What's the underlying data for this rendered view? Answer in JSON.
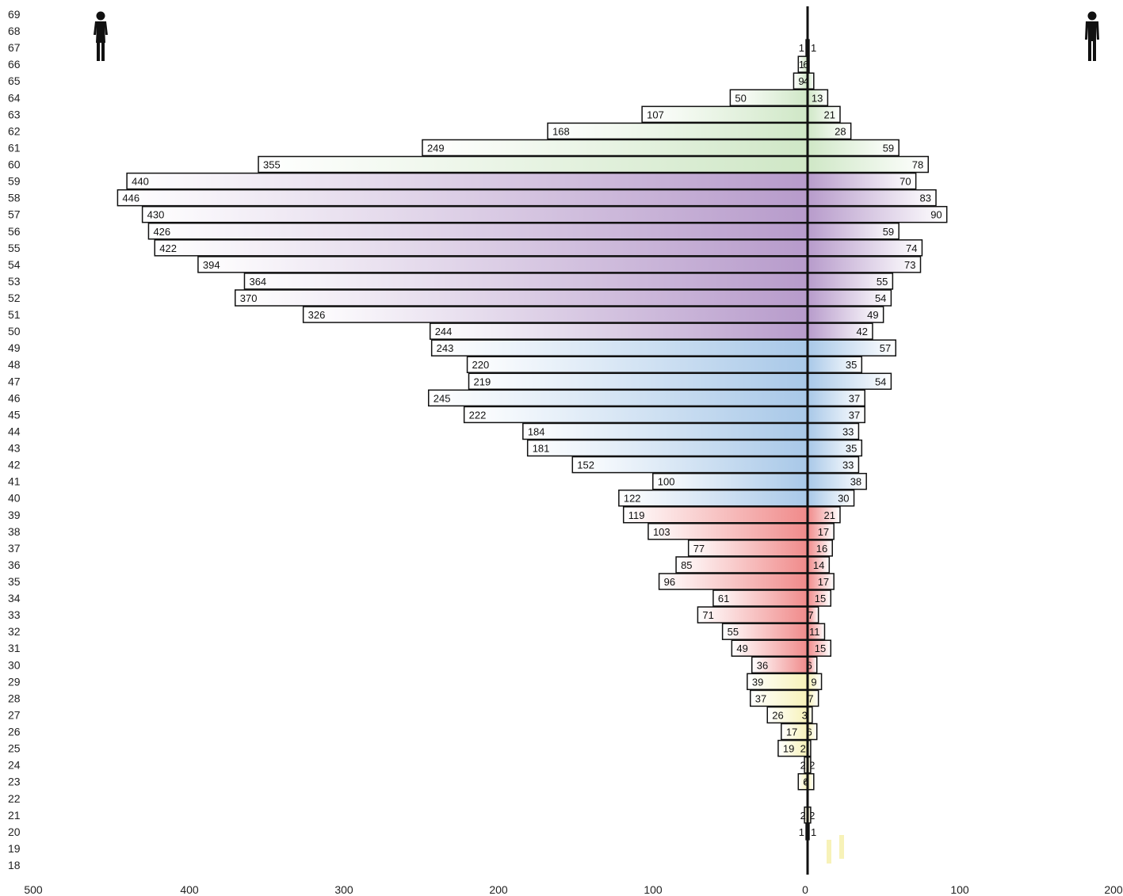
{
  "icons": {
    "left": "female-icon",
    "right": "male-icon"
  },
  "colors": {
    "green": "#cfe7c6",
    "purple": "#b79bcb",
    "blue": "#a8c8e8",
    "red": "#f08a8a",
    "yellow": "#f7f2b8"
  },
  "chart_data": {
    "type": "bar",
    "subtype": "population-pyramid",
    "grid": false,
    "ages": [
      69,
      68,
      67,
      66,
      65,
      64,
      63,
      62,
      61,
      60,
      59,
      58,
      57,
      56,
      55,
      54,
      53,
      52,
      51,
      50,
      49,
      48,
      47,
      46,
      45,
      44,
      43,
      42,
      41,
      40,
      39,
      38,
      37,
      36,
      35,
      34,
      33,
      32,
      31,
      30,
      29,
      28,
      27,
      26,
      25,
      24,
      23,
      22,
      21,
      20,
      19,
      18
    ],
    "x_ticks": [
      "500",
      "400",
      "300",
      "200",
      "100",
      "0",
      "100",
      "200"
    ],
    "xlim_left": [
      500,
      0
    ],
    "xlim_right": [
      0,
      200
    ],
    "series": [
      {
        "side": "left",
        "icon": "female-icon",
        "values": [
          null,
          null,
          1,
          6,
          9,
          50,
          107,
          168,
          249,
          355,
          440,
          446,
          430,
          426,
          422,
          394,
          364,
          370,
          326,
          244,
          243,
          220,
          219,
          245,
          222,
          184,
          181,
          152,
          100,
          122,
          119,
          103,
          77,
          85,
          96,
          61,
          71,
          55,
          49,
          36,
          39,
          37,
          26,
          17,
          19,
          2,
          6,
          null,
          2,
          1,
          null,
          null
        ]
      },
      {
        "side": "right",
        "icon": "male-icon",
        "values": [
          null,
          null,
          1,
          1,
          4,
          13,
          21,
          28,
          59,
          78,
          70,
          83,
          90,
          59,
          74,
          73,
          55,
          54,
          49,
          42,
          57,
          35,
          54,
          37,
          37,
          33,
          35,
          33,
          38,
          30,
          21,
          17,
          16,
          14,
          17,
          15,
          7,
          11,
          15,
          6,
          9,
          7,
          3,
          6,
          2,
          2,
          4,
          null,
          2,
          1,
          null,
          null
        ]
      }
    ]
  }
}
